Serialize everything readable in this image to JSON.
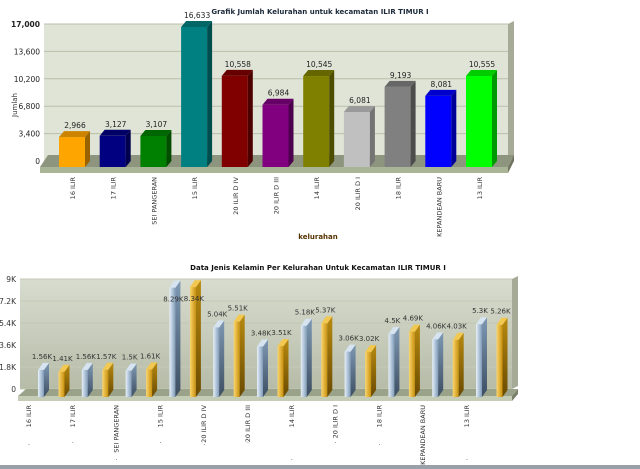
{
  "chart_data": [
    {
      "type": "bar",
      "title": "Grafik Jumlah Kelurahan untuk kecamatan ILIR TIMUR I",
      "xlabel": "kelurahan",
      "ylabel": "Jumlah",
      "ylim": [
        0,
        17000
      ],
      "yticks": [
        "0",
        "3,400",
        "6,800",
        "10,200",
        "13,600",
        "17,000"
      ],
      "ytick_values": [
        0,
        3400,
        6800,
        10200,
        13600,
        17000
      ],
      "grid": true,
      "categories": [
        "16 ILIR",
        "17 ILIR",
        "SEI PANGERAN",
        "15 ILIR",
        "20 ILIR D IV",
        "20 ILIR D III",
        "14 ILIR",
        "20 ILIR D I",
        "18 ILIR",
        "KEPANDEAN BARU",
        "13 ILIR"
      ],
      "values": [
        2966,
        3127,
        3107,
        16633,
        10558,
        6984,
        10545,
        6081,
        9193,
        8081,
        10555
      ],
      "data_labels": [
        "2,966",
        "3,127",
        "3,107",
        "16,633",
        "10,558",
        "6,984",
        "10,545",
        "6,081",
        "9,193",
        "8,081",
        "10,555"
      ],
      "colors": [
        "#ffa500",
        "#000080",
        "#008000",
        "#008080",
        "#800000",
        "#800080",
        "#808000",
        "#c0c0c0",
        "#808080",
        "#0000ff",
        "#00ff00"
      ]
    },
    {
      "type": "bar",
      "title": "Data Jenis Kelamin Per Kelurahan Untuk Kecamatan ILIR TIMUR I",
      "ylim": [
        0,
        9000
      ],
      "yticks": [
        "0",
        "1.8K",
        "3.6K",
        "5.4K",
        "7.2K",
        "9K"
      ],
      "ytick_values": [
        0,
        1800,
        3600,
        5400,
        7200,
        9000
      ],
      "grid": true,
      "categories": [
        "16 ILIR",
        "17 ILIR",
        "SEI PANGERAN",
        "15 ILIR",
        "20 ILIR D IV",
        "20 ILIR D III",
        "14 ILIR",
        "20 ILIR D I",
        "18 ILIR",
        "KEPANDEAN BARU",
        "13 ILIR"
      ],
      "category_sublabel": ".",
      "series": [
        {
          "values": [
            1560,
            1560,
            1500,
            8290,
            5040,
            3480,
            5180,
            3060,
            4500,
            4060,
            5300
          ],
          "data_labels": [
            "1.56K",
            "1.56K",
            "1.5K",
            "8.29K",
            "5.04K",
            "3.48K",
            "5.18K",
            "3.06K",
            "4.5K",
            "4.06K",
            "5.3K"
          ],
          "color": "#a9c4de"
        },
        {
          "values": [
            1410,
            1570,
            1610,
            8340,
            5510,
            3510,
            5370,
            3020,
            4690,
            4030,
            5260
          ],
          "data_labels": [
            "1.41K",
            "1.57K",
            "1.61K",
            "8.34K",
            "5.51K",
            "3.51K",
            "5.37K",
            "3.02K",
            "4.69K",
            "4.03K",
            "5.26K"
          ],
          "color": "#d9a520"
        }
      ]
    }
  ]
}
